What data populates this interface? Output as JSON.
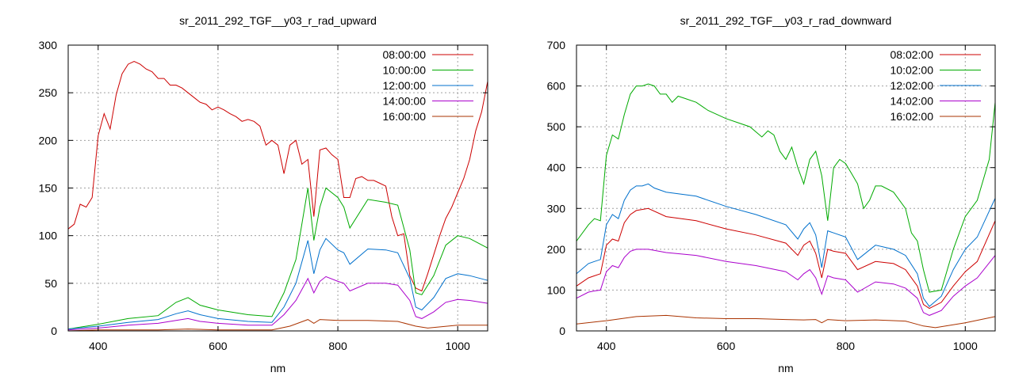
{
  "chart_data": [
    {
      "type": "line",
      "title": "sr_2011_292_TGF__y03_r_rad_upward",
      "xlabel": "nm",
      "ylabel": "",
      "xlim": [
        350,
        1050
      ],
      "ylim": [
        0,
        300
      ],
      "xticks": [
        400,
        600,
        800,
        1000
      ],
      "yticks": [
        0,
        50,
        100,
        150,
        200,
        250,
        300
      ],
      "grid": true,
      "legend_position": "top-right",
      "series": [
        {
          "name": "08:00:00",
          "color": "#cc0000",
          "x": [
            350,
            360,
            370,
            380,
            390,
            400,
            410,
            420,
            430,
            440,
            450,
            460,
            470,
            480,
            490,
            500,
            510,
            520,
            530,
            540,
            550,
            560,
            570,
            580,
            590,
            600,
            610,
            620,
            630,
            640,
            650,
            660,
            670,
            680,
            690,
            700,
            710,
            720,
            730,
            740,
            750,
            760,
            770,
            780,
            790,
            800,
            810,
            820,
            830,
            840,
            850,
            860,
            870,
            880,
            890,
            900,
            910,
            920,
            930,
            940,
            950,
            960,
            970,
            980,
            990,
            1000,
            1010,
            1020,
            1030,
            1040,
            1050
          ],
          "y": [
            107,
            112,
            133,
            130,
            140,
            205,
            228,
            212,
            248,
            270,
            280,
            283,
            280,
            275,
            272,
            265,
            265,
            258,
            258,
            255,
            250,
            245,
            240,
            238,
            232,
            235,
            232,
            228,
            225,
            220,
            222,
            220,
            215,
            195,
            200,
            195,
            165,
            195,
            200,
            175,
            180,
            120,
            190,
            192,
            185,
            180,
            140,
            140,
            160,
            162,
            158,
            158,
            155,
            152,
            120,
            100,
            102,
            58,
            45,
            42,
            60,
            80,
            100,
            118,
            130,
            145,
            160,
            180,
            210,
            230,
            262
          ],
          "label_pos": 0
        },
        {
          "name": "10:00:00",
          "color": "#00aa00",
          "x": [
            350,
            400,
            450,
            500,
            530,
            550,
            570,
            600,
            650,
            690,
            710,
            730,
            750,
            760,
            770,
            780,
            800,
            810,
            820,
            850,
            880,
            900,
            920,
            930,
            940,
            960,
            980,
            1000,
            1020,
            1050
          ],
          "y": [
            2,
            7,
            13,
            16,
            30,
            35,
            27,
            22,
            17,
            15,
            40,
            75,
            150,
            95,
            130,
            150,
            140,
            130,
            108,
            138,
            135,
            132,
            85,
            40,
            38,
            58,
            90,
            100,
            97,
            87
          ]
        },
        {
          "name": "12:00:00",
          "color": "#0070cc",
          "x": [
            350,
            400,
            450,
            500,
            530,
            550,
            570,
            600,
            650,
            690,
            710,
            730,
            750,
            760,
            770,
            780,
            800,
            810,
            820,
            850,
            880,
            900,
            920,
            930,
            940,
            960,
            980,
            1000,
            1020,
            1050
          ],
          "y": [
            2,
            5,
            9,
            12,
            18,
            21,
            17,
            13,
            10,
            9,
            25,
            50,
            95,
            60,
            85,
            97,
            85,
            82,
            70,
            86,
            85,
            82,
            55,
            25,
            22,
            35,
            55,
            60,
            58,
            53
          ]
        },
        {
          "name": "14:00:00",
          "color": "#aa00cc",
          "x": [
            350,
            400,
            450,
            500,
            530,
            550,
            570,
            600,
            650,
            690,
            710,
            730,
            750,
            760,
            770,
            780,
            800,
            810,
            820,
            850,
            880,
            900,
            920,
            930,
            940,
            960,
            980,
            1000,
            1020,
            1050
          ],
          "y": [
            1,
            3,
            6,
            8,
            11,
            13,
            10,
            8,
            6,
            6,
            17,
            32,
            55,
            40,
            52,
            57,
            52,
            50,
            42,
            50,
            50,
            48,
            32,
            15,
            13,
            20,
            30,
            33,
            32,
            29
          ]
        },
        {
          "name": "16:00:00",
          "color": "#aa3300",
          "x": [
            350,
            400,
            450,
            500,
            550,
            600,
            650,
            690,
            720,
            750,
            760,
            770,
            800,
            850,
            900,
            930,
            950,
            1000,
            1050
          ],
          "y": [
            0,
            1,
            1,
            1,
            2,
            1,
            1,
            1,
            5,
            12,
            8,
            12,
            11,
            11,
            10,
            5,
            3,
            6,
            6
          ]
        }
      ]
    },
    {
      "type": "line",
      "title": "sr_2011_292_TGF__y03_r_rad_downward",
      "xlabel": "nm",
      "ylabel": "",
      "xlim": [
        350,
        1050
      ],
      "ylim": [
        0,
        700
      ],
      "xticks": [
        400,
        600,
        800,
        1000
      ],
      "yticks": [
        0,
        100,
        200,
        300,
        400,
        500,
        600,
        700
      ],
      "grid": true,
      "legend_position": "top-right",
      "series": [
        {
          "name": "08:02:00",
          "color": "#cc0000",
          "x": [
            350,
            370,
            380,
            390,
            400,
            410,
            420,
            430,
            440,
            450,
            470,
            500,
            550,
            600,
            650,
            700,
            720,
            730,
            740,
            750,
            760,
            770,
            780,
            800,
            820,
            850,
            880,
            900,
            920,
            930,
            940,
            960,
            980,
            1000,
            1020,
            1050
          ],
          "y": [
            110,
            130,
            135,
            140,
            210,
            225,
            220,
            265,
            285,
            295,
            300,
            280,
            270,
            250,
            235,
            215,
            185,
            210,
            220,
            190,
            130,
            200,
            195,
            190,
            150,
            170,
            165,
            150,
            110,
            65,
            55,
            70,
            110,
            145,
            170,
            270
          ]
        },
        {
          "name": "10:02:00",
          "color": "#00aa00",
          "x": [
            350,
            370,
            380,
            390,
            400,
            410,
            420,
            430,
            440,
            450,
            460,
            470,
            480,
            490,
            500,
            510,
            520,
            530,
            550,
            570,
            600,
            620,
            640,
            660,
            670,
            680,
            690,
            700,
            710,
            720,
            730,
            740,
            750,
            760,
            770,
            780,
            790,
            800,
            810,
            820,
            830,
            840,
            850,
            860,
            880,
            900,
            910,
            920,
            930,
            940,
            960,
            980,
            1000,
            1020,
            1040,
            1050
          ],
          "y": [
            220,
            260,
            275,
            270,
            430,
            480,
            470,
            530,
            580,
            600,
            600,
            605,
            600,
            580,
            580,
            560,
            575,
            570,
            560,
            540,
            520,
            510,
            500,
            475,
            490,
            480,
            440,
            420,
            450,
            400,
            360,
            420,
            440,
            380,
            270,
            400,
            420,
            410,
            385,
            360,
            300,
            320,
            355,
            355,
            340,
            300,
            240,
            220,
            150,
            95,
            100,
            200,
            280,
            320,
            420,
            560
          ]
        },
        {
          "name": "12:02:00",
          "color": "#0070cc",
          "x": [
            350,
            370,
            380,
            390,
            400,
            410,
            420,
            430,
            440,
            450,
            460,
            470,
            480,
            500,
            550,
            600,
            650,
            700,
            720,
            730,
            740,
            750,
            760,
            770,
            780,
            800,
            820,
            850,
            880,
            900,
            920,
            930,
            940,
            960,
            980,
            1000,
            1020,
            1050
          ],
          "y": [
            140,
            165,
            170,
            175,
            260,
            285,
            275,
            320,
            345,
            355,
            355,
            360,
            350,
            340,
            330,
            305,
            285,
            260,
            225,
            250,
            265,
            235,
            155,
            245,
            240,
            230,
            175,
            210,
            200,
            185,
            140,
            80,
            60,
            85,
            150,
            200,
            230,
            325
          ]
        },
        {
          "name": "14:02:00",
          "color": "#aa00cc",
          "x": [
            350,
            370,
            380,
            390,
            400,
            410,
            420,
            430,
            440,
            450,
            470,
            500,
            550,
            600,
            650,
            700,
            720,
            730,
            740,
            750,
            760,
            770,
            780,
            800,
            820,
            850,
            880,
            900,
            920,
            930,
            940,
            960,
            980,
            1000,
            1020,
            1050
          ],
          "y": [
            80,
            95,
            98,
            100,
            145,
            160,
            155,
            180,
            195,
            200,
            200,
            192,
            185,
            170,
            160,
            145,
            125,
            140,
            150,
            130,
            90,
            135,
            130,
            125,
            95,
            120,
            115,
            105,
            80,
            45,
            38,
            50,
            85,
            110,
            130,
            185
          ]
        },
        {
          "name": "16:02:00",
          "color": "#aa3300",
          "x": [
            350,
            400,
            450,
            500,
            550,
            600,
            650,
            700,
            730,
            750,
            760,
            770,
            800,
            850,
            900,
            930,
            950,
            1000,
            1050
          ],
          "y": [
            17,
            25,
            35,
            38,
            32,
            30,
            30,
            28,
            27,
            28,
            20,
            28,
            25,
            27,
            24,
            12,
            8,
            20,
            35
          ]
        }
      ]
    }
  ]
}
